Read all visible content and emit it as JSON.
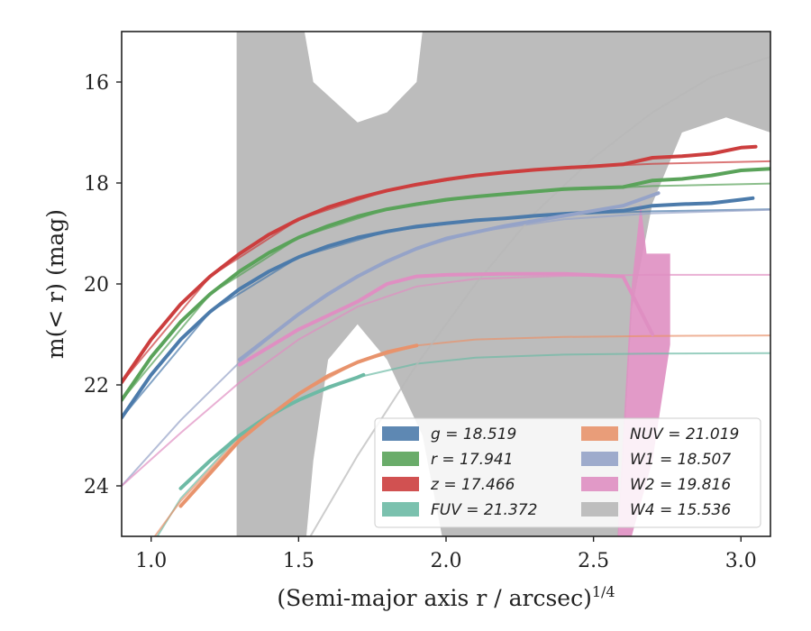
{
  "chart_data": {
    "type": "line",
    "xlabel": "(Semi-major axis r / arcsec)",
    "xlabel_sup": "1/4",
    "ylabel": "m(< r) (mag)",
    "xlim": [
      0.9,
      3.1
    ],
    "ylim": [
      25.0,
      15.0
    ],
    "y_inverted": true,
    "x_ticks": [
      1.0,
      1.5,
      2.0,
      2.5,
      3.0
    ],
    "x_tick_labels": [
      "1.0",
      "1.5",
      "2.0",
      "2.5",
      "3.0"
    ],
    "y_ticks": [
      16,
      18,
      20,
      22,
      24
    ],
    "y_tick_labels": [
      "16",
      "18",
      "20",
      "22",
      "24"
    ],
    "legend_position": "lower-right",
    "grid": false,
    "series": [
      {
        "name": "g = 18.519",
        "color": "#4c7bab",
        "data_x": [
          0.9,
          1.0,
          1.1,
          1.2,
          1.3,
          1.4,
          1.5,
          1.6,
          1.7,
          1.8,
          1.9,
          2.0,
          2.1,
          2.2,
          2.3,
          2.4,
          2.5,
          2.6,
          2.7,
          2.8,
          2.9,
          3.0,
          3.04
        ],
        "data_y": [
          22.65,
          21.8,
          21.1,
          20.55,
          20.1,
          19.75,
          19.47,
          19.25,
          19.08,
          18.96,
          18.86,
          18.8,
          18.74,
          18.7,
          18.65,
          18.61,
          18.58,
          18.55,
          18.45,
          18.42,
          18.4,
          18.33,
          18.3
        ],
        "model_x": [
          0.9,
          1.2,
          1.5,
          1.8,
          2.1,
          2.4,
          2.7,
          3.1
        ],
        "model_y": [
          22.65,
          20.55,
          19.47,
          18.96,
          18.74,
          18.62,
          18.56,
          18.52
        ]
      },
      {
        "name": "r = 17.941",
        "color": "#5aa35a",
        "data_x": [
          0.9,
          1.0,
          1.1,
          1.2,
          1.3,
          1.4,
          1.5,
          1.6,
          1.7,
          1.8,
          1.9,
          2.0,
          2.1,
          2.2,
          2.3,
          2.4,
          2.5,
          2.6,
          2.7,
          2.8,
          2.9,
          3.0,
          3.1
        ],
        "data_y": [
          22.3,
          21.45,
          20.75,
          20.2,
          19.75,
          19.38,
          19.08,
          18.85,
          18.66,
          18.52,
          18.42,
          18.33,
          18.27,
          18.22,
          18.17,
          18.12,
          18.1,
          18.08,
          17.95,
          17.92,
          17.85,
          17.75,
          17.72
        ],
        "model_x": [
          0.9,
          1.2,
          1.5,
          1.8,
          2.1,
          2.4,
          2.7,
          3.1
        ],
        "model_y": [
          22.3,
          20.2,
          19.08,
          18.52,
          18.27,
          18.14,
          18.06,
          18.01
        ]
      },
      {
        "name": "z = 17.466",
        "color": "#cc3e3e",
        "data_x": [
          0.9,
          1.0,
          1.1,
          1.2,
          1.3,
          1.4,
          1.5,
          1.6,
          1.7,
          1.8,
          1.9,
          2.0,
          2.1,
          2.2,
          2.3,
          2.4,
          2.5,
          2.6,
          2.7,
          2.8,
          2.9,
          3.0,
          3.05
        ],
        "data_y": [
          21.95,
          21.1,
          20.4,
          19.85,
          19.4,
          19.02,
          18.72,
          18.48,
          18.3,
          18.15,
          18.03,
          17.93,
          17.85,
          17.79,
          17.74,
          17.7,
          17.67,
          17.63,
          17.5,
          17.47,
          17.42,
          17.3,
          17.28
        ],
        "model_x": [
          0.9,
          1.2,
          1.5,
          1.8,
          2.1,
          2.4,
          2.7,
          3.1
        ],
        "model_y": [
          21.95,
          19.85,
          18.72,
          18.15,
          17.85,
          17.7,
          17.62,
          17.57
        ]
      },
      {
        "name": "FUV = 21.372",
        "color": "#6dbaa5",
        "data_x": [
          1.1,
          1.2,
          1.3,
          1.4,
          1.5,
          1.6,
          1.7,
          1.72
        ],
        "data_y": [
          24.05,
          23.5,
          23.0,
          22.6,
          22.3,
          22.05,
          21.85,
          21.8
        ],
        "model_x": [
          1.0,
          1.1,
          1.3,
          1.5,
          1.7,
          1.9,
          2.1,
          2.4,
          2.7,
          3.1
        ],
        "model_y": [
          25.2,
          24.25,
          23.0,
          22.3,
          21.85,
          21.58,
          21.46,
          21.4,
          21.38,
          21.37
        ]
      },
      {
        "name": "NUV = 21.019",
        "color": "#e8936c",
        "data_x": [
          1.1,
          1.2,
          1.3,
          1.4,
          1.5,
          1.6,
          1.7,
          1.8,
          1.9
        ],
        "data_y": [
          24.4,
          23.75,
          23.1,
          22.62,
          22.18,
          21.82,
          21.55,
          21.35,
          21.22
        ],
        "model_x": [
          1.0,
          1.1,
          1.3,
          1.5,
          1.7,
          1.9,
          2.1,
          2.4,
          2.7,
          3.1
        ],
        "model_y": [
          25.1,
          24.3,
          23.05,
          22.18,
          21.55,
          21.22,
          21.1,
          21.05,
          21.03,
          21.02
        ]
      },
      {
        "name": "W1 = 18.507",
        "color": "#95a3c8",
        "data_x": [
          1.3,
          1.4,
          1.5,
          1.6,
          1.7,
          1.8,
          1.9,
          2.0,
          2.2,
          2.4,
          2.6,
          2.72
        ],
        "data_y": [
          21.5,
          21.05,
          20.6,
          20.2,
          19.85,
          19.55,
          19.3,
          19.1,
          18.85,
          18.65,
          18.45,
          18.2
        ],
        "model_x": [
          0.9,
          1.1,
          1.3,
          1.5,
          1.7,
          1.9,
          2.1,
          2.4,
          2.7,
          3.1
        ],
        "model_y": [
          24.0,
          22.7,
          21.55,
          20.6,
          19.85,
          19.3,
          18.97,
          18.72,
          18.6,
          18.53
        ]
      },
      {
        "name": "W2 = 19.816",
        "color": "#df8fc2",
        "data_x": [
          1.3,
          1.5,
          1.7,
          1.8,
          1.9,
          2.0,
          2.2,
          2.4,
          2.6,
          2.7
        ],
        "data_y": [
          21.6,
          20.9,
          20.35,
          20.0,
          19.85,
          19.82,
          19.8,
          19.8,
          19.85,
          21.0
        ],
        "model_x": [
          0.9,
          1.1,
          1.3,
          1.5,
          1.7,
          1.9,
          2.1,
          2.4,
          2.7,
          3.1
        ],
        "model_y": [
          24.0,
          22.95,
          21.95,
          21.1,
          20.45,
          20.05,
          19.9,
          19.84,
          19.82,
          19.82
        ]
      },
      {
        "name": "W4 = 15.536",
        "color": "#b8b8b8",
        "model_x": [
          1.5,
          1.7,
          1.9,
          2.1,
          2.3,
          2.5,
          2.7,
          2.9,
          3.1
        ],
        "model_y": [
          25.4,
          23.4,
          21.6,
          20.0,
          18.6,
          17.5,
          16.6,
          15.9,
          15.5
        ]
      }
    ]
  }
}
